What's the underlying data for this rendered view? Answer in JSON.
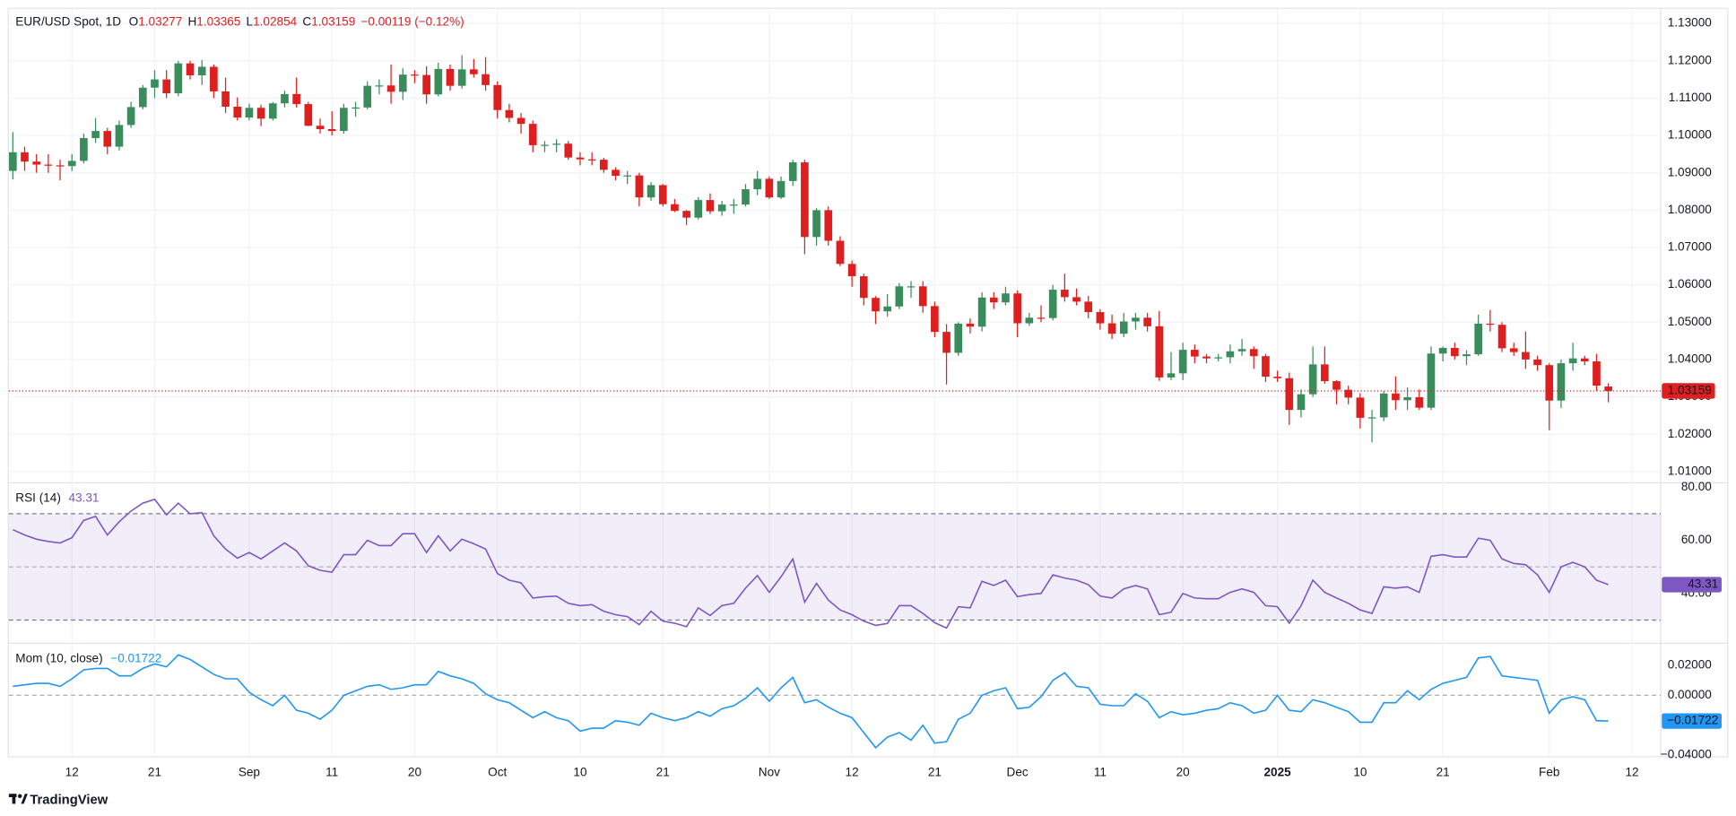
{
  "branding": "TradingView",
  "chart_data": [
    {
      "type": "candlestick",
      "title": "EUR/USD Spot, 1D",
      "ohlc_keys": [
        "O",
        "H",
        "L",
        "C"
      ],
      "change": "−0.00119 (−0.12%)",
      "up_color": "#3a8c5c",
      "down_color": "#dd1f1f",
      "grid": true,
      "xlim": [
        -0.337,
        139.43
      ],
      "xticks": [
        {
          "value": 5,
          "label": "12"
        },
        {
          "value": 12,
          "label": "21"
        },
        {
          "value": 20,
          "label": "Sep"
        },
        {
          "value": 27,
          "label": "11"
        },
        {
          "value": 34,
          "label": "20"
        },
        {
          "value": 41,
          "label": "Oct"
        },
        {
          "value": 48,
          "label": "10"
        },
        {
          "value": 55,
          "label": "21"
        },
        {
          "value": 64,
          "label": "Nov"
        },
        {
          "value": 71,
          "label": "12"
        },
        {
          "value": 78,
          "label": "21"
        },
        {
          "value": 85,
          "label": "Dec"
        },
        {
          "value": 92,
          "label": "11"
        },
        {
          "value": 99,
          "label": "20"
        },
        {
          "value": 107,
          "label": "2025"
        },
        {
          "value": 114,
          "label": "10"
        },
        {
          "value": 121,
          "label": "21"
        },
        {
          "value": 130,
          "label": "Feb"
        },
        {
          "value": 137,
          "label": "12"
        }
      ],
      "ylim": [
        1.0073,
        1.1339
      ],
      "yticks": [
        {
          "value": 1.01,
          "label": "1.01000"
        },
        {
          "value": 1.02,
          "label": "1.02000"
        },
        {
          "value": 1.03,
          "label": "1.03000"
        },
        {
          "value": 1.04,
          "label": "1.04000"
        },
        {
          "value": 1.05,
          "label": "1.05000"
        },
        {
          "value": 1.06,
          "label": "1.06000"
        },
        {
          "value": 1.07,
          "label": "1.07000"
        },
        {
          "value": 1.08,
          "label": "1.08000"
        },
        {
          "value": 1.09,
          "label": "1.09000"
        },
        {
          "value": 1.1,
          "label": "1.10000"
        },
        {
          "value": 1.11,
          "label": "1.11000"
        },
        {
          "value": 1.12,
          "label": "1.12000"
        },
        {
          "value": 1.13,
          "label": "1.13000"
        }
      ],
      "open": [
        1.0905,
        1.0955,
        1.093,
        1.0922,
        1.092,
        1.0918,
        1.0932,
        1.0993,
        1.1012,
        1.097,
        1.1028,
        1.1076,
        1.1128,
        1.115,
        1.1113,
        1.1193,
        1.1161,
        1.1184,
        1.1118,
        1.1077,
        1.1048,
        1.1074,
        1.1045,
        1.1086,
        1.1111,
        1.1084,
        1.1026,
        1.1017,
        1.1012,
        1.1074,
        1.1075,
        1.1133,
        1.1134,
        1.1117,
        1.1163,
        1.1162,
        1.111,
        1.1178,
        1.1133,
        1.1177,
        1.1164,
        1.1135,
        1.1068,
        1.1047,
        1.1031,
        1.0974,
        1.0975,
        1.0978,
        1.0941,
        1.0936,
        1.0935,
        1.0908,
        1.0892,
        1.0893,
        1.0834,
        1.0867,
        1.0816,
        1.0798,
        1.078,
        1.0827,
        1.0797,
        1.0815,
        1.0815,
        1.0856,
        1.0884,
        1.0834,
        1.0878,
        1.0928,
        1.0728,
        1.08,
        1.0718,
        1.0656,
        1.0623,
        1.0565,
        1.0529,
        1.0542,
        1.0596,
        1.0596,
        1.0543,
        1.0474,
        1.0418,
        1.0496,
        1.0488,
        1.0566,
        1.0553,
        1.0577,
        1.0497,
        1.0512,
        1.0511,
        1.0587,
        1.0567,
        1.0555,
        1.0527,
        1.0497,
        1.0469,
        1.0502,
        1.0512,
        1.0489,
        1.0352,
        1.0363,
        1.0426,
        1.0408,
        1.0403,
        1.0406,
        1.0422,
        1.0428,
        1.0409,
        1.0354,
        1.035,
        1.0265,
        1.0307,
        1.0387,
        1.0342,
        1.0319,
        1.0298,
        1.0244,
        1.0245,
        1.0309,
        1.0291,
        1.0299,
        1.0271,
        1.0416,
        1.0431,
        1.0409,
        1.0414,
        1.0496,
        1.0493,
        1.043,
        1.042,
        1.04,
        1.0385,
        1.029,
        1.039,
        1.0403,
        1.0395,
        1.03277
      ],
      "high": [
        1.1009,
        1.097,
        1.095,
        1.095,
        1.0935,
        1.095,
        1.1005,
        1.1047,
        1.102,
        1.104,
        1.109,
        1.1135,
        1.1175,
        1.1175,
        1.12,
        1.12,
        1.1202,
        1.119,
        1.1155,
        1.1102,
        1.1085,
        1.1082,
        1.109,
        1.112,
        1.1155,
        1.109,
        1.1045,
        1.1065,
        1.1085,
        1.109,
        1.1145,
        1.115,
        1.119,
        1.118,
        1.1175,
        1.1185,
        1.1195,
        1.119,
        1.1215,
        1.1205,
        1.121,
        1.1145,
        1.1085,
        1.106,
        1.104,
        1.0985,
        1.099,
        1.0985,
        1.0955,
        1.0955,
        1.094,
        1.0915,
        1.0905,
        1.09,
        1.0875,
        1.087,
        1.083,
        1.08,
        1.0835,
        1.0845,
        1.0825,
        1.083,
        1.087,
        1.0905,
        1.089,
        1.089,
        1.0935,
        1.0935,
        1.0805,
        1.081,
        1.073,
        1.0665,
        1.063,
        1.057,
        1.0575,
        1.0605,
        1.061,
        1.061,
        1.0555,
        1.0495,
        1.05,
        1.051,
        1.058,
        1.058,
        1.0595,
        1.0585,
        1.0525,
        1.0545,
        1.06,
        1.063,
        1.059,
        1.057,
        1.0535,
        1.052,
        1.0525,
        1.0525,
        1.0525,
        1.053,
        1.042,
        1.0445,
        1.044,
        1.0415,
        1.0415,
        1.044,
        1.0455,
        1.0435,
        1.0415,
        1.037,
        1.0365,
        1.032,
        1.0435,
        1.0435,
        1.0345,
        1.033,
        1.031,
        1.0265,
        1.0315,
        1.0355,
        1.0325,
        1.032,
        1.0435,
        1.0435,
        1.0445,
        1.0425,
        1.052,
        1.0533,
        1.05,
        1.0445,
        1.0475,
        1.041,
        1.039,
        1.04,
        1.0445,
        1.041,
        1.0415,
        1.03365
      ],
      "low": [
        1.0882,
        1.0905,
        1.09,
        1.09,
        1.088,
        1.0905,
        1.0925,
        1.098,
        1.095,
        1.096,
        1.102,
        1.107,
        1.11,
        1.11,
        1.1105,
        1.115,
        1.1135,
        1.11,
        1.106,
        1.104,
        1.104,
        1.1025,
        1.104,
        1.1075,
        1.1075,
        1.1025,
        1.1005,
        1.1,
        1.1005,
        1.105,
        1.107,
        1.111,
        1.1085,
        1.1095,
        1.114,
        1.1085,
        1.1105,
        1.112,
        1.1125,
        1.1155,
        1.112,
        1.1045,
        1.1035,
        1.1005,
        1.0955,
        1.0955,
        1.0955,
        1.0935,
        1.092,
        1.092,
        1.09,
        1.088,
        1.087,
        1.081,
        1.0825,
        1.081,
        1.0795,
        1.076,
        1.0775,
        1.079,
        1.0785,
        1.079,
        1.081,
        1.084,
        1.083,
        1.083,
        1.0865,
        1.0682,
        1.0705,
        1.0705,
        1.065,
        1.0595,
        1.0545,
        1.0495,
        1.0515,
        1.0535,
        1.0565,
        1.0525,
        1.046,
        1.0333,
        1.041,
        1.047,
        1.0475,
        1.0535,
        1.0545,
        1.046,
        1.049,
        1.05,
        1.0505,
        1.0555,
        1.0545,
        1.051,
        1.048,
        1.0455,
        1.046,
        1.048,
        1.0475,
        1.0343,
        1.0345,
        1.0345,
        1.039,
        1.039,
        1.0395,
        1.039,
        1.041,
        1.0375,
        1.034,
        1.034,
        1.0225,
        1.0245,
        1.03,
        1.0335,
        1.028,
        1.028,
        1.0215,
        1.0178,
        1.0235,
        1.0265,
        1.0265,
        1.0265,
        1.0265,
        1.0395,
        1.04,
        1.0385,
        1.041,
        1.0475,
        1.042,
        1.041,
        1.0375,
        1.037,
        1.0211,
        1.027,
        1.037,
        1.0385,
        1.0315,
        1.02854
      ],
      "close": [
        1.0955,
        1.093,
        1.0922,
        1.092,
        1.0918,
        1.0932,
        1.0993,
        1.1012,
        1.097,
        1.1028,
        1.1076,
        1.1128,
        1.115,
        1.1113,
        1.1193,
        1.1161,
        1.1184,
        1.1118,
        1.1077,
        1.1048,
        1.1074,
        1.1045,
        1.1086,
        1.1111,
        1.1084,
        1.1026,
        1.1017,
        1.1012,
        1.1074,
        1.1075,
        1.1133,
        1.1134,
        1.1117,
        1.1163,
        1.1162,
        1.111,
        1.1178,
        1.1133,
        1.1177,
        1.1164,
        1.1135,
        1.1068,
        1.1047,
        1.1031,
        1.0974,
        1.0975,
        1.0978,
        1.0941,
        1.0936,
        1.0935,
        1.0908,
        1.0892,
        1.0893,
        1.0834,
        1.0867,
        1.0816,
        1.0798,
        1.078,
        1.0827,
        1.0797,
        1.0815,
        1.0815,
        1.0856,
        1.0884,
        1.0834,
        1.0878,
        1.0928,
        1.0728,
        1.08,
        1.0718,
        1.0656,
        1.0623,
        1.0565,
        1.0529,
        1.0542,
        1.0596,
        1.0596,
        1.0543,
        1.0474,
        1.0418,
        1.0496,
        1.0488,
        1.0566,
        1.0553,
        1.0577,
        1.0497,
        1.0512,
        1.0511,
        1.0587,
        1.0567,
        1.0555,
        1.0527,
        1.0497,
        1.0469,
        1.0502,
        1.0512,
        1.0489,
        1.0352,
        1.0363,
        1.0426,
        1.0408,
        1.0403,
        1.0406,
        1.0422,
        1.0428,
        1.0409,
        1.0354,
        1.035,
        1.0265,
        1.0307,
        1.0387,
        1.0342,
        1.0319,
        1.0298,
        1.0244,
        1.0245,
        1.0309,
        1.0291,
        1.0299,
        1.0271,
        1.0416,
        1.0431,
        1.0409,
        1.0414,
        1.0496,
        1.0493,
        1.043,
        1.042,
        1.04,
        1.0385,
        1.029,
        1.039,
        1.0403,
        1.0395,
        1.033,
        1.03159
      ]
    },
    {
      "type": "line",
      "title": "RSI (14)",
      "color": "#7e57c2",
      "ylim": [
        21.67,
        81.25
      ],
      "yticks": [
        {
          "value": 80,
          "label": "80.00"
        },
        {
          "value": 60,
          "label": "60.00"
        },
        {
          "value": 40,
          "label": "40.00"
        }
      ],
      "band": [
        30,
        70
      ],
      "midline": 50,
      "values": [
        64,
        62,
        60.4,
        59.6,
        59,
        61,
        67.5,
        69,
        62,
        67,
        71,
        74,
        75.4,
        69.6,
        74,
        70,
        70.4,
        61.7,
        56.7,
        53.3,
        55.4,
        53,
        56,
        59,
        56,
        50.4,
        48.7,
        48,
        54.6,
        54.6,
        60,
        58,
        58,
        62.5,
        62.5,
        55.4,
        61.7,
        56,
        60.4,
        58.7,
        56.7,
        47.5,
        45,
        44,
        38.3,
        38.8,
        39,
        36.3,
        35.4,
        35.8,
        33.3,
        32,
        31.3,
        28.3,
        33.3,
        29.6,
        28.8,
        27.5,
        34.6,
        31.7,
        35.4,
        36.3,
        42,
        46.7,
        40.4,
        46.3,
        53,
        36.7,
        43.8,
        37.5,
        33.8,
        32,
        29.6,
        28,
        28.7,
        35.4,
        35.4,
        32.5,
        29,
        27,
        35,
        34.6,
        44.6,
        43,
        45,
        38.8,
        39.6,
        40,
        47,
        45.8,
        45,
        43.3,
        39,
        38.3,
        41.7,
        43,
        41.7,
        32,
        32.9,
        40,
        38.3,
        38,
        38,
        40.4,
        41.7,
        40.4,
        35.4,
        35,
        28.8,
        35.4,
        45,
        40.4,
        38.3,
        36.3,
        33.8,
        32.5,
        42.5,
        42,
        42.5,
        40.4,
        54,
        54.6,
        53.7,
        53.7,
        60.8,
        60,
        53,
        51.3,
        50.8,
        47,
        40.4,
        50,
        51.7,
        50,
        45,
        43.31
      ]
    },
    {
      "type": "line",
      "title": "Mom (10, close)",
      "color": "#2196f3",
      "ylim": [
        -0.04074,
        0.03407
      ],
      "yticks": [
        {
          "value": 0.02,
          "label": "0.02000"
        },
        {
          "value": 0,
          "label": "0.00000"
        },
        {
          "value": -0.04,
          "label": "−0.04000"
        }
      ],
      "midline": 0,
      "values": [
        0.006,
        0.007,
        0.008,
        0.008,
        0.006,
        0.011,
        0.017,
        0.018,
        0.018,
        0.013,
        0.013,
        0.018,
        0.021,
        0.019,
        0.027,
        0.024,
        0.019,
        0.014,
        0.011,
        0.011,
        0.002,
        -0.003,
        -0.007,
        0.0,
        -0.01,
        -0.012,
        -0.016,
        -0.01,
        0.0,
        0.003,
        0.006,
        0.007,
        0.004,
        0.005,
        0.007,
        0.007,
        0.016,
        0.013,
        0.011,
        0.008,
        0.001,
        -0.003,
        -0.005,
        -0.01,
        -0.015,
        -0.011,
        -0.015,
        -0.017,
        -0.024,
        -0.022,
        -0.022,
        -0.017,
        -0.018,
        -0.02,
        -0.012,
        -0.015,
        -0.017,
        -0.015,
        -0.011,
        -0.014,
        -0.009,
        -0.007,
        -0.002,
        0.005,
        -0.004,
        0.005,
        0.012,
        -0.005,
        -0.003,
        -0.008,
        -0.012,
        -0.015,
        -0.025,
        -0.035,
        -0.028,
        -0.025,
        -0.03,
        -0.02,
        -0.032,
        -0.031,
        -0.016,
        -0.012,
        0.0,
        0.003,
        0.005,
        -0.009,
        -0.008,
        -0.001,
        0.01,
        0.015,
        0.006,
        0.005,
        -0.006,
        -0.007,
        -0.007,
        0.001,
        -0.004,
        -0.015,
        -0.011,
        -0.013,
        -0.012,
        -0.01,
        -0.009,
        -0.005,
        -0.007,
        -0.012,
        -0.01,
        0.0,
        -0.01,
        -0.011,
        -0.003,
        -0.005,
        -0.008,
        -0.011,
        -0.018,
        -0.018,
        -0.005,
        -0.005,
        0.003,
        -0.003,
        0.004,
        0.008,
        0.01,
        0.012,
        0.025,
        0.026,
        0.013,
        0.012,
        0.011,
        0.01,
        -0.012,
        -0.003,
        -0.001,
        -0.003,
        -0.017,
        -0.01722
      ],
      "value_labels": {
        "135": "−0.01722"
      }
    }
  ]
}
